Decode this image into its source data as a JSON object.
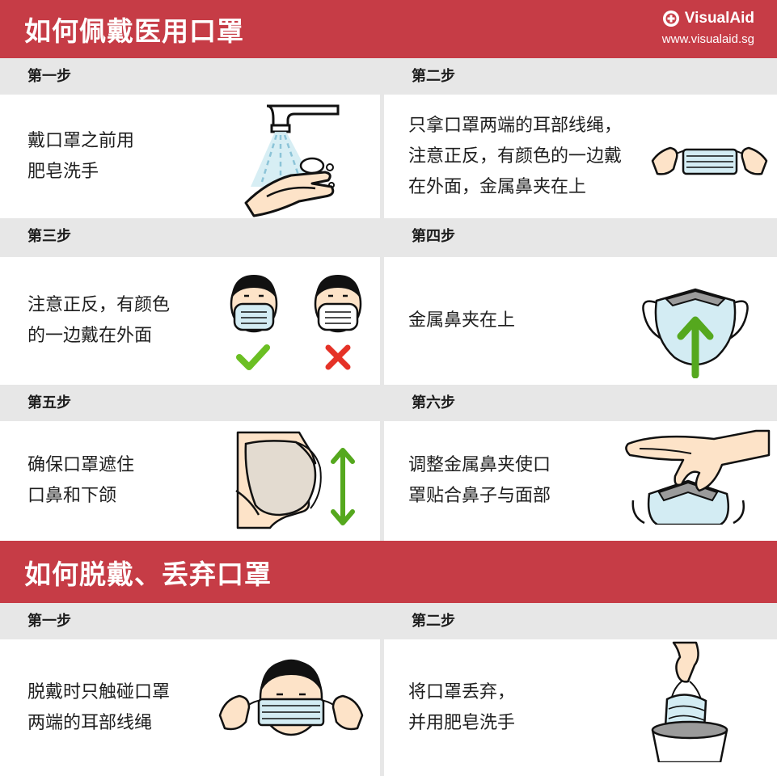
{
  "section1": {
    "title": "如何佩戴医用口罩"
  },
  "brand": {
    "name": "VisualAid",
    "url": "www.visualaid.sg",
    "icon": "eye-cross-icon"
  },
  "steps_wear": [
    {
      "label": "第一步",
      "text": "戴口罩之前用\n肥皂洗手",
      "icon": "hand-washing-icon"
    },
    {
      "label": "第二步",
      "text": "只拿口罩两端的耳部线绳，\n注意正反，有颜色的一边戴\n在外面，金属鼻夹在上",
      "icon": "hands-holding-mask-icon"
    },
    {
      "label": "第三步",
      "text": "注意正反，有颜色\n的一边戴在外面",
      "icon": "correct-vs-wrong-mask-icon"
    },
    {
      "label": "第四步",
      "text": "金属鼻夹在上",
      "icon": "mask-nose-clip-up-icon"
    },
    {
      "label": "第五步",
      "text": "确保口罩遮住\n口鼻和下颌",
      "icon": "mask-covering-face-icon"
    },
    {
      "label": "第六步",
      "text": "调整金属鼻夹使口\n罩贴合鼻子与面部",
      "icon": "pinch-nose-clip-icon"
    }
  ],
  "section2": {
    "title": "如何脱戴、丢弃口罩"
  },
  "steps_remove": [
    {
      "label": "第一步",
      "text": "脱戴时只触碰口罩\n两端的耳部线绳",
      "icon": "remove-mask-by-straps-icon"
    },
    {
      "label": "第二步",
      "text": "将口罩丢弃，\n并用肥皂洗手",
      "icon": "discard-mask-in-bin-icon"
    }
  ],
  "colors": {
    "header_red": "#c63c46",
    "mask_blue": "#d3ecf3",
    "check_green": "#6bbf23",
    "cross_red": "#e53227",
    "skin": "#fde3c8"
  }
}
